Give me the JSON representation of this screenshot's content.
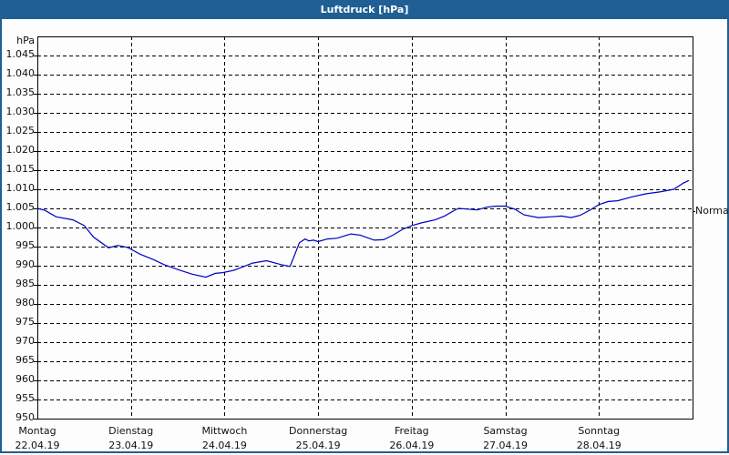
{
  "title": "Luftdruck [hPa]",
  "chart_data": {
    "type": "line",
    "title": "Luftdruck [hPa]",
    "ylabel": "hPa",
    "xlabel": "",
    "ylim": [
      950,
      1050
    ],
    "grid": true,
    "y_ticks": [
      "950",
      "955",
      "960",
      "965",
      "970",
      "975",
      "980",
      "985",
      "990",
      "995",
      "1.000",
      "1.005",
      "1.010",
      "1.015",
      "1.020",
      "1.025",
      "1.030",
      "1.035",
      "1.040",
      "1.045"
    ],
    "x_ticks": [
      {
        "day": "Montag",
        "date": "22.04.19"
      },
      {
        "day": "Dienstag",
        "date": "23.04.19"
      },
      {
        "day": "Mittwoch",
        "date": "24.04.19"
      },
      {
        "day": "Donnerstag",
        "date": "25.04.19"
      },
      {
        "day": "Freitag",
        "date": "26.04.19"
      },
      {
        "day": "Samstag",
        "date": "27.04.19"
      },
      {
        "day": "Sonntag",
        "date": "28.04.19"
      }
    ],
    "reference_line": {
      "label": "Normal",
      "value": 1004.3
    },
    "series": [
      {
        "name": "Luftdruck",
        "color": "#0000c0",
        "x_days": [
          0.0,
          0.08,
          0.2,
          0.38,
          0.5,
          0.6,
          0.76,
          0.86,
          0.96,
          1.0,
          1.1,
          1.25,
          1.35,
          1.5,
          1.65,
          1.8,
          1.9,
          1.98,
          2.1,
          2.3,
          2.45,
          2.6,
          2.7,
          2.8,
          2.86,
          2.9,
          2.95,
          3.0,
          3.1,
          3.2,
          3.35,
          3.45,
          3.6,
          3.7,
          3.8,
          3.9,
          4.0,
          4.1,
          4.25,
          4.35,
          4.45,
          4.5,
          4.6,
          4.7,
          4.8,
          4.9,
          5.0,
          5.1,
          5.2,
          5.35,
          5.5,
          5.6,
          5.7,
          5.8,
          5.9,
          6.0,
          6.1,
          6.2,
          6.35,
          6.5,
          6.65,
          6.8,
          6.9,
          6.96
        ],
        "values": [
          1005.0,
          1004.5,
          1002.8,
          1002.0,
          1000.5,
          997.5,
          994.7,
          995.3,
          994.8,
          994.3,
          993.0,
          991.5,
          990.3,
          989.0,
          987.8,
          987.0,
          988.0,
          988.2,
          988.8,
          990.7,
          991.3,
          990.3,
          989.8,
          996.0,
          997.0,
          996.5,
          996.7,
          996.3,
          997.0,
          997.2,
          998.3,
          998.0,
          996.7,
          996.8,
          998.0,
          999.5,
          1000.5,
          1001.2,
          1002.0,
          1003.0,
          1004.4,
          1005.0,
          1004.8,
          1004.6,
          1005.3,
          1005.6,
          1005.6,
          1004.8,
          1003.3,
          1002.6,
          1002.8,
          1003.0,
          1002.6,
          1003.2,
          1004.5,
          1006.0,
          1006.8,
          1007.0,
          1008.0,
          1008.8,
          1009.3,
          1010.0,
          1011.6,
          1012.3
        ]
      }
    ]
  }
}
